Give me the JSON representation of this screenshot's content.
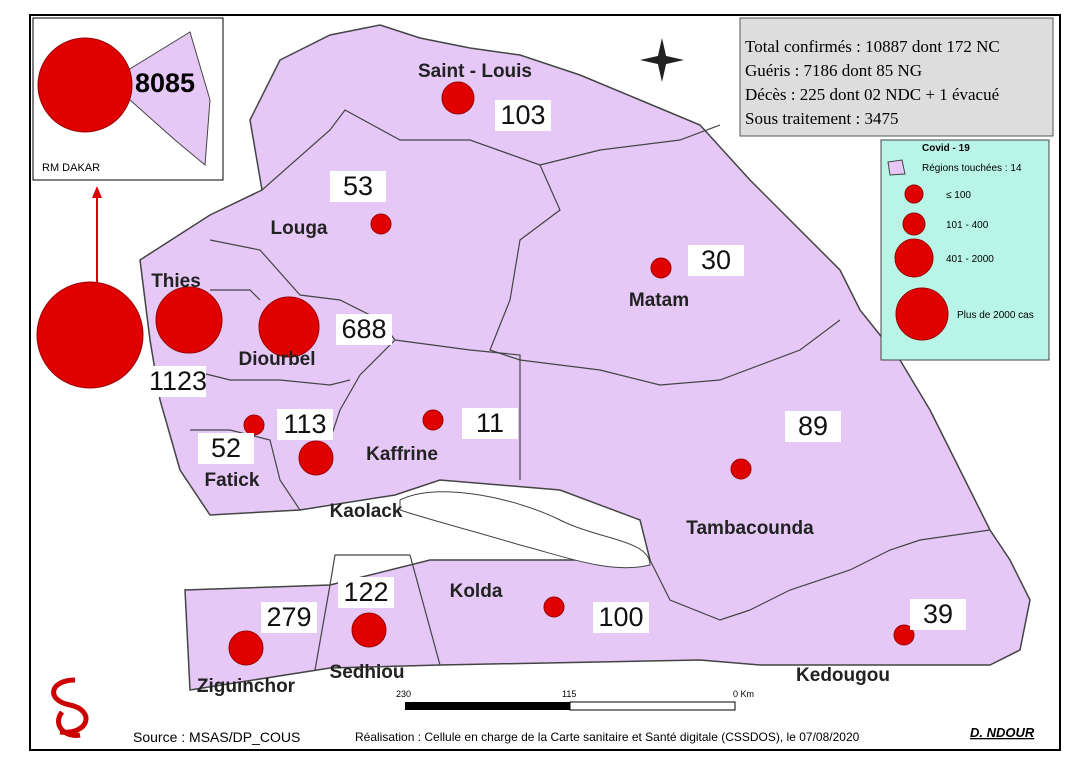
{
  "info": {
    "lines": [
      "Total confirmés : 10887  dont 172 NC",
      "Guéris : 7186  dont  85 NG",
      "Décès : 225 dont 02 NDC + 1 évacué",
      "Sous traitement : 3475"
    ]
  },
  "legend": {
    "title": "Covid - 19",
    "subtitle": "Régions touchées : 14",
    "items": [
      "≤ 100",
      "101 - 400",
      "401 - 2000",
      "Plus de 2000 cas"
    ]
  },
  "inset": {
    "value": 8085,
    "label": "RM DAKAR"
  },
  "regions": [
    {
      "name": "Saint - Louis",
      "value": 103
    },
    {
      "name": "Louga",
      "value": 53
    },
    {
      "name": "Thies",
      "value": 1123
    },
    {
      "name": "Diourbel",
      "value": 688
    },
    {
      "name": "Matam",
      "value": 30
    },
    {
      "name": "Fatick",
      "value": 52
    },
    {
      "name": "Kaolack",
      "value": 113
    },
    {
      "name": "Kaffrine",
      "value": 11
    },
    {
      "name": "Tambacounda",
      "value": 89
    },
    {
      "name": "Kolda",
      "value": 100
    },
    {
      "name": "Sedhiou",
      "value": 122
    },
    {
      "name": "Ziguinchor",
      "value": 279
    },
    {
      "name": "Kedougou",
      "value": 39
    }
  ],
  "scale": {
    "labels": [
      "230",
      "115",
      "0 Km"
    ]
  },
  "footer": {
    "source": "Source : MSAS/DP_COUS",
    "credit": "Réalisation : Cellule en charge de la Carte sanitaire et Santé digitale (CSSDOS), le 07/08/2020",
    "author": "D. NDOUR"
  }
}
